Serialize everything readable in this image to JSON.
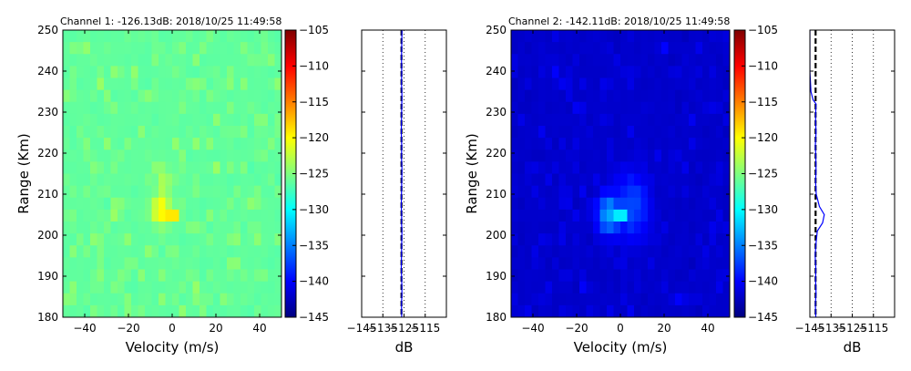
{
  "colormap": {
    "name": "jet",
    "stops": [
      "#00007f",
      "#0000ff",
      "#007fff",
      "#00ffff",
      "#7fff7f",
      "#ffff00",
      "#ff7f00",
      "#ff0000",
      "#7f0000"
    ]
  },
  "chart_data": [
    {
      "type": "heatmap",
      "title": "Channel 1: -126.13dB: 2018/10/25 11:49:58",
      "xlabel": "Velocity (m/s)",
      "ylabel": "Range (Km)",
      "xlim": [
        -50,
        50
      ],
      "ylim": [
        180,
        250
      ],
      "xticks": [
        "−40",
        "−20",
        "0",
        "20",
        "40"
      ],
      "xtick_values": [
        -40,
        -20,
        0,
        20,
        40
      ],
      "yticks": [
        "180",
        "190",
        "200",
        "210",
        "220",
        "230",
        "240",
        "250"
      ],
      "ytick_values": [
        180,
        190,
        200,
        210,
        220,
        230,
        240,
        250
      ],
      "grid_cols": 32,
      "grid_rows": 24,
      "background_db": -126.5,
      "noise_db": 1.6,
      "hotspots": [
        {
          "v": 0,
          "r": 205,
          "db": -116,
          "sv": 2.0,
          "sr": 1.4
        },
        {
          "v": -5,
          "r": 206,
          "db": -119,
          "sv": 3.0,
          "sr": 2.5
        },
        {
          "v": -4,
          "r": 212,
          "db": -123,
          "sv": 2.5,
          "sr": 4.0
        }
      ],
      "colorbar": {
        "range": [
          -145,
          -105
        ],
        "ticks": [
          "−105",
          "−110",
          "−115",
          "−120",
          "−125",
          "−130",
          "−135",
          "−140",
          "−145"
        ],
        "tick_values": [
          -105,
          -110,
          -115,
          -120,
          -125,
          -130,
          -135,
          -140,
          -145
        ]
      },
      "profile": {
        "xlim": [
          -145,
          -105
        ],
        "xlabel": "dB",
        "xticks": [
          "−145",
          "−135",
          "−125",
          "−115"
        ],
        "xtick_values": [
          -145,
          -135,
          -125,
          -115
        ],
        "grid_values": [
          -135,
          -125,
          -115
        ],
        "noise_level_db": -126.2,
        "profile_db": [
          -126.1,
          -126.2,
          -126.0,
          -126.1,
          -126.3,
          -126.2,
          -126.1,
          -126.0,
          -126.2,
          -126.1,
          -126.3,
          -126.2,
          -126.1,
          -126.0,
          -126.2,
          -126.1,
          -126.3,
          -126.2,
          -126.1,
          -126.0,
          -126.2,
          -126.1,
          -126.2,
          -126.1,
          -126.0
        ],
        "profile_ranges": [
          180,
          183,
          186,
          189,
          192,
          195,
          198,
          201,
          203,
          205,
          207,
          210,
          213,
          216,
          219,
          222,
          225,
          228,
          231,
          234,
          237,
          240,
          243,
          246,
          250
        ]
      }
    },
    {
      "type": "heatmap",
      "title": "Channel 2: -142.11dB: 2018/10/25 11:49:58",
      "xlabel": "Velocity (m/s)",
      "ylabel": "Range (Km)",
      "xlim": [
        -50,
        50
      ],
      "ylim": [
        180,
        250
      ],
      "xticks": [
        "−40",
        "−20",
        "0",
        "20",
        "40"
      ],
      "xtick_values": [
        -40,
        -20,
        0,
        20,
        40
      ],
      "yticks": [
        "180",
        "190",
        "200",
        "210",
        "220",
        "230",
        "240",
        "250"
      ],
      "ytick_values": [
        180,
        190,
        200,
        210,
        220,
        230,
        240,
        250
      ],
      "grid_cols": 32,
      "grid_rows": 24,
      "background_db": -142.3,
      "noise_db": 1.3,
      "hotspots": [
        {
          "v": 0,
          "r": 205,
          "db": -127,
          "sv": 2.2,
          "sr": 1.6
        },
        {
          "v": -5,
          "r": 205,
          "db": -133,
          "sv": 4.0,
          "sr": 3.5
        },
        {
          "v": 5,
          "r": 207,
          "db": -137,
          "sv": 6.0,
          "sr": 6.0
        }
      ],
      "colorbar": {
        "range": [
          -145,
          -105
        ],
        "ticks": [
          "−105",
          "−110",
          "−115",
          "−120",
          "−125",
          "−130",
          "−135",
          "−140",
          "−145"
        ],
        "tick_values": [
          -105,
          -110,
          -115,
          -120,
          -125,
          -130,
          -135,
          -140,
          -145
        ]
      },
      "profile": {
        "xlim": [
          -145,
          -105
        ],
        "xlabel": "dB",
        "xticks": [
          "−145",
          "−135",
          "−125",
          "−115"
        ],
        "xtick_values": [
          -145,
          -135,
          -125,
          -115
        ],
        "grid_values": [
          -135,
          -125,
          -115
        ],
        "noise_level_db": -142.3,
        "profile_db": [
          -142.2,
          -142.4,
          -142.1,
          -142.3,
          -142.2,
          -142.5,
          -142.1,
          -141.5,
          -139.0,
          -138.2,
          -140.5,
          -142.0,
          -142.3,
          -142.1,
          -142.2,
          -142.4,
          -142.1,
          -142.3,
          -142.2,
          -142.1,
          -143.5,
          -144.5,
          -145.0,
          -145.0,
          -145.0
        ],
        "profile_ranges": [
          180,
          183,
          186,
          189,
          192,
          195,
          198,
          201,
          203,
          205,
          207,
          210,
          213,
          216,
          219,
          222,
          225,
          228,
          231,
          232,
          233,
          235,
          240,
          245,
          250
        ]
      }
    }
  ]
}
